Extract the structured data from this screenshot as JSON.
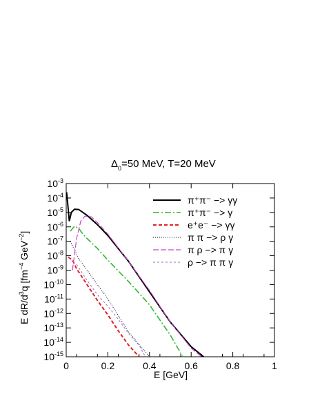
{
  "chart_data": {
    "type": "line",
    "title": "Δ₀=50 MeV, T=20 MeV",
    "xlabel": "E [GeV]",
    "ylabel": "E dR/d³q [fm⁻⁴ GeV⁻²]",
    "xlim": [
      0,
      1
    ],
    "ylim_log10": [
      -15,
      -3
    ],
    "yscale": "log",
    "x_ticks": [
      "0",
      "0.2",
      "0.4",
      "0.6",
      "0.8",
      "1"
    ],
    "y_tick_exponents": [
      -3,
      -4,
      -5,
      -6,
      -7,
      -8,
      -9,
      -10,
      -11,
      -12,
      -13,
      -14,
      -15
    ],
    "y_tick_base": "10",
    "legend_position": "top-right",
    "series": [
      {
        "name": "π⁺π⁻ −> γγ",
        "color": "#000000",
        "style": "solid",
        "points": [
          [
            0.002,
            -3.6
          ],
          [
            0.008,
            -4.5
          ],
          [
            0.015,
            -5.6
          ],
          [
            0.025,
            -5.0
          ],
          [
            0.04,
            -4.78
          ],
          [
            0.06,
            -4.8
          ],
          [
            0.08,
            -5.0
          ],
          [
            0.1,
            -5.2
          ],
          [
            0.15,
            -5.85
          ],
          [
            0.2,
            -6.6
          ],
          [
            0.3,
            -8.4
          ],
          [
            0.4,
            -10.5
          ],
          [
            0.5,
            -12.6
          ],
          [
            0.6,
            -14.3
          ],
          [
            0.66,
            -15.0
          ]
        ]
      },
      {
        "name": "π⁺π⁻ −> γ",
        "color": "#2eb82e",
        "style": "dashdot",
        "points": [
          [
            0.02,
            -6.3
          ],
          [
            0.04,
            -5.95
          ],
          [
            0.06,
            -6.1
          ],
          [
            0.08,
            -6.5
          ],
          [
            0.1,
            -6.8
          ],
          [
            0.15,
            -7.5
          ],
          [
            0.2,
            -8.3
          ],
          [
            0.3,
            -9.8
          ],
          [
            0.4,
            -11.4
          ],
          [
            0.5,
            -13.5
          ],
          [
            0.56,
            -15.0
          ]
        ]
      },
      {
        "name": "e⁺e⁻ −> γγ",
        "color": "#e02020",
        "style": "dashed",
        "points": [
          [
            0.01,
            -8.1
          ],
          [
            0.03,
            -8.3
          ],
          [
            0.05,
            -8.9
          ],
          [
            0.1,
            -10.0
          ],
          [
            0.15,
            -11.1
          ],
          [
            0.2,
            -12.1
          ],
          [
            0.25,
            -13.2
          ],
          [
            0.3,
            -14.2
          ],
          [
            0.35,
            -15.0
          ]
        ]
      },
      {
        "name": "π π −> ρ γ",
        "color": "#000000",
        "style": "dotted",
        "points": [
          [
            0.02,
            -7.0
          ],
          [
            0.04,
            -7.6
          ],
          [
            0.06,
            -8.2
          ],
          [
            0.1,
            -9.0
          ],
          [
            0.15,
            -10.0
          ],
          [
            0.2,
            -11.0
          ],
          [
            0.3,
            -13.3
          ],
          [
            0.4,
            -15.0
          ]
        ]
      },
      {
        "name": "π ρ −> π γ",
        "color": "#cc44cc",
        "style": "longdash",
        "points": [
          [
            0.03,
            -9.0
          ],
          [
            0.05,
            -6.8
          ],
          [
            0.07,
            -5.6
          ],
          [
            0.09,
            -5.25
          ],
          [
            0.12,
            -5.3
          ],
          [
            0.15,
            -5.7
          ],
          [
            0.2,
            -6.5
          ],
          [
            0.3,
            -8.4
          ],
          [
            0.4,
            -10.4
          ],
          [
            0.5,
            -12.6
          ],
          [
            0.6,
            -14.4
          ],
          [
            0.65,
            -15.0
          ]
        ]
      },
      {
        "name": "ρ −> π π γ",
        "color": "#9966cc",
        "style": "shortdash",
        "points": [
          [
            0.05,
            -8.6
          ],
          [
            0.1,
            -9.7
          ],
          [
            0.15,
            -10.7
          ],
          [
            0.2,
            -11.5
          ],
          [
            0.25,
            -12.4
          ],
          [
            0.3,
            -13.4
          ],
          [
            0.35,
            -14.2
          ],
          [
            0.38,
            -15.0
          ]
        ]
      }
    ]
  }
}
